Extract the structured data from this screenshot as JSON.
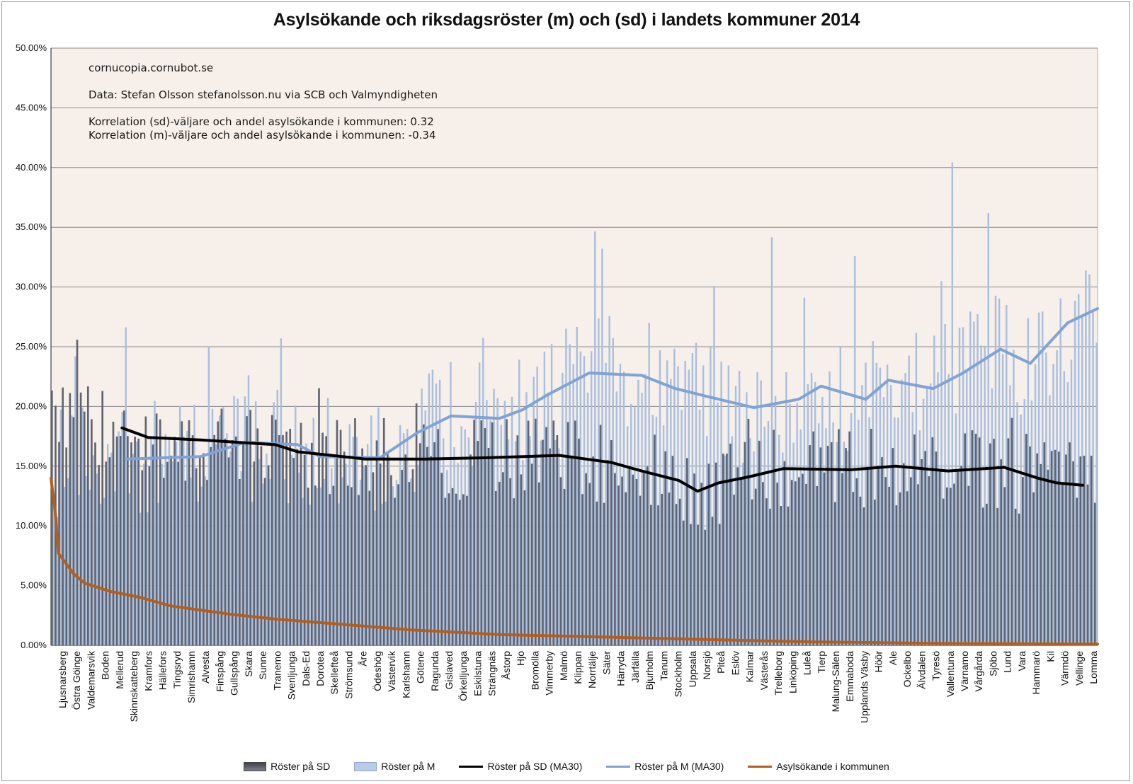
{
  "chart_data": {
    "type": "bar",
    "title": "Asylsökande och riksdagsröster (m) och (sd) i landets kommuner 2014",
    "annotations": [
      "cornucopia.cornubot.se",
      "Data: Stefan Olsson stefanolsson.nu via SCB och Valmyndigheten",
      "Korrelation (sd)-väljare och andel asylsökande i kommunen: 0.32",
      "Korrelation (m)-väljare och andel asylsökande i kommunen: -0.34"
    ],
    "ylim": [
      0,
      50
    ],
    "yticks": [
      "0.00%",
      "5.00%",
      "10.00%",
      "15.00%",
      "20.00%",
      "25.00%",
      "30.00%",
      "35.00%",
      "40.00%",
      "45.00%",
      "50.00%"
    ],
    "n_bars": 290,
    "category_labels": [
      "Ljusnarsberg",
      "Östra Göinge",
      "Valdemarsvik",
      "Boden",
      "Mellerud",
      "Skinnskatteberg",
      "Kramfors",
      "Hällefors",
      "Tingsryd",
      "Simrishamn",
      "Alvesta",
      "Finspång",
      "Gullspång",
      "Skara",
      "Sunne",
      "Tranemo",
      "Svenljunga",
      "Dals-Ed",
      "Dorotea",
      "Skellefteå",
      "Strömsund",
      "Åre",
      "Ödeshög",
      "Västervik",
      "Karlshamn",
      "Götene",
      "Ragunda",
      "Gislaved",
      "Örkelljunga",
      "Eskilstuna",
      "Strängnäs",
      "Åstorp",
      "Hjo",
      "Bromölla",
      "Vimmerby",
      "Malmö",
      "Klippan",
      "Norrtälje",
      "Säter",
      "Härryda",
      "Järfälla",
      "Bjurholm",
      "Tanum",
      "Stockholm",
      "Uppsala",
      "Norsjö",
      "Piteå",
      "Eslöv",
      "Kalmar",
      "Västerås",
      "Trelleborg",
      "Linköping",
      "Luleå",
      "Tierp",
      "Malung-Sälen",
      "Emmaboda",
      "Upplands Väsby",
      "Höör",
      "Ale",
      "Ockelbo",
      "Älvdalen",
      "Tyresö",
      "Vallentuna",
      "Värnamo",
      "Vårgårda",
      "Sjöbo",
      "Lund",
      "Vara",
      "Hammarö",
      "Kil",
      "Värmdö",
      "Vellinge",
      "Lomma"
    ],
    "series": [
      {
        "name": "Röster på SD",
        "type": "bar",
        "color": "#5f6470",
        "approx_range": [
          8,
          30
        ]
      },
      {
        "name": "Röster på M",
        "type": "bar",
        "color": "#a9bfdf",
        "approx_range": [
          5,
          50
        ]
      },
      {
        "name": "Röster på SD (MA30)",
        "type": "line",
        "color": "#000000",
        "points": [
          [
            0.095,
            18.2
          ],
          [
            0.13,
            17.4
          ],
          [
            0.2,
            17.2
          ],
          [
            0.3,
            16.8
          ],
          [
            0.33,
            16.2
          ],
          [
            0.36,
            16.0
          ],
          [
            0.42,
            15.6
          ],
          [
            0.5,
            15.6
          ],
          [
            0.58,
            15.7
          ],
          [
            0.68,
            15.9
          ],
          [
            0.75,
            15.3
          ],
          [
            0.79,
            14.6
          ],
          [
            0.84,
            13.8
          ],
          [
            0.865,
            12.9
          ],
          [
            0.893,
            13.6
          ],
          [
            0.933,
            14.1
          ],
          [
            0.98,
            14.8
          ],
          [
            1.07,
            14.7
          ],
          [
            1.13,
            15.0
          ],
          [
            1.2,
            14.6
          ],
          [
            1.275,
            14.9
          ],
          [
            1.32,
            14.0
          ],
          [
            1.345,
            13.6
          ],
          [
            1.38,
            13.4
          ]
        ]
      },
      {
        "name": "Röster på M (MA30)",
        "type": "line",
        "color": "#7ea3d6",
        "points": [
          [
            0.1,
            15.6
          ],
          [
            0.2,
            15.8
          ],
          [
            0.26,
            17.0
          ],
          [
            0.33,
            16.8
          ],
          [
            0.36,
            15.8
          ],
          [
            0.44,
            15.7
          ],
          [
            0.49,
            17.8
          ],
          [
            0.535,
            19.2
          ],
          [
            0.6,
            19.0
          ],
          [
            0.63,
            19.7
          ],
          [
            0.665,
            21.0
          ],
          [
            0.72,
            22.8
          ],
          [
            0.79,
            22.6
          ],
          [
            0.835,
            21.5
          ],
          [
            0.88,
            20.8
          ],
          [
            0.94,
            19.9
          ],
          [
            1.0,
            20.6
          ],
          [
            1.03,
            21.7
          ],
          [
            1.09,
            20.6
          ],
          [
            1.12,
            22.2
          ],
          [
            1.18,
            21.5
          ],
          [
            1.22,
            22.8
          ],
          [
            1.27,
            24.8
          ],
          [
            1.31,
            23.6
          ],
          [
            1.36,
            27.0
          ],
          [
            1.4,
            28.2
          ]
        ]
      },
      {
        "name": "Asylsökande i kommunen",
        "type": "line",
        "color": "#b35e1e",
        "points": [
          [
            0,
            14.0
          ],
          [
            0.006,
            11.0
          ],
          [
            0.01,
            7.7
          ],
          [
            0.03,
            6.0
          ],
          [
            0.045,
            5.2
          ],
          [
            0.08,
            4.5
          ],
          [
            0.12,
            4.0
          ],
          [
            0.16,
            3.3
          ],
          [
            0.24,
            2.6
          ],
          [
            0.3,
            2.2
          ],
          [
            0.38,
            1.8
          ],
          [
            0.48,
            1.3
          ],
          [
            0.6,
            0.9
          ],
          [
            0.8,
            0.6
          ],
          [
            1.0,
            0.3
          ],
          [
            1.2,
            0.15
          ],
          [
            1.4,
            0.1
          ]
        ]
      }
    ]
  },
  "legend": {
    "sd_bar": "Röster på SD",
    "m_bar": "Röster på M",
    "sd_ma": "Röster på SD (MA30)",
    "m_ma": "Röster på M (MA30)",
    "asyl": "Asylsökande i kommunen"
  },
  "colors": {
    "plot_bg": "#f7efe9",
    "sd": "#5f6470",
    "m": "#a9bfdf",
    "sd_ma": "#000000",
    "m_ma": "#7ea3d6",
    "asyl": "#b35e1e",
    "grid": "#8a8a8a"
  }
}
